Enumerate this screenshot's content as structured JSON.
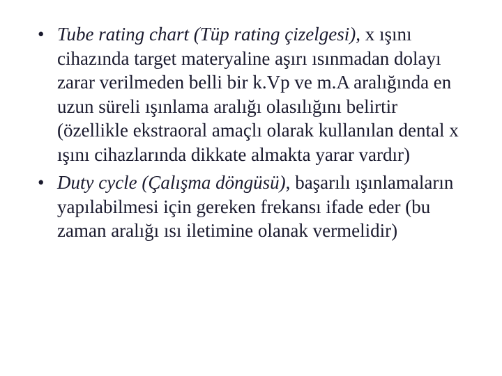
{
  "slide": {
    "bullets": [
      {
        "term": "Tube rating chart (Tüp rating çizelgesi),",
        "body": " x ışını cihazında target materyaline aşırı ısınmadan dolayı zarar verilmeden belli bir k.Vp ve m.A aralığında en uzun süreli ışınlama aralığı olasılığını belirtir (özellikle ekstraoral amaçlı olarak kullanılan dental x ışını cihazlarında dikkate almakta yarar vardır)"
      },
      {
        "term": "Duty cycle (Çalışma döngüsü),",
        "body": " başarılı ışınlamaların yapılabilmesi için gereken frekansı ifade eder (bu zaman aralığı ısı iletimine olanak vermelidir)"
      }
    ]
  },
  "style": {
    "background_color": "#ffffff",
    "text_color": "#1a1a2e",
    "font_family": "Times New Roman",
    "font_size_pt": 20,
    "bullet_char": "•",
    "term_style": "italic"
  }
}
